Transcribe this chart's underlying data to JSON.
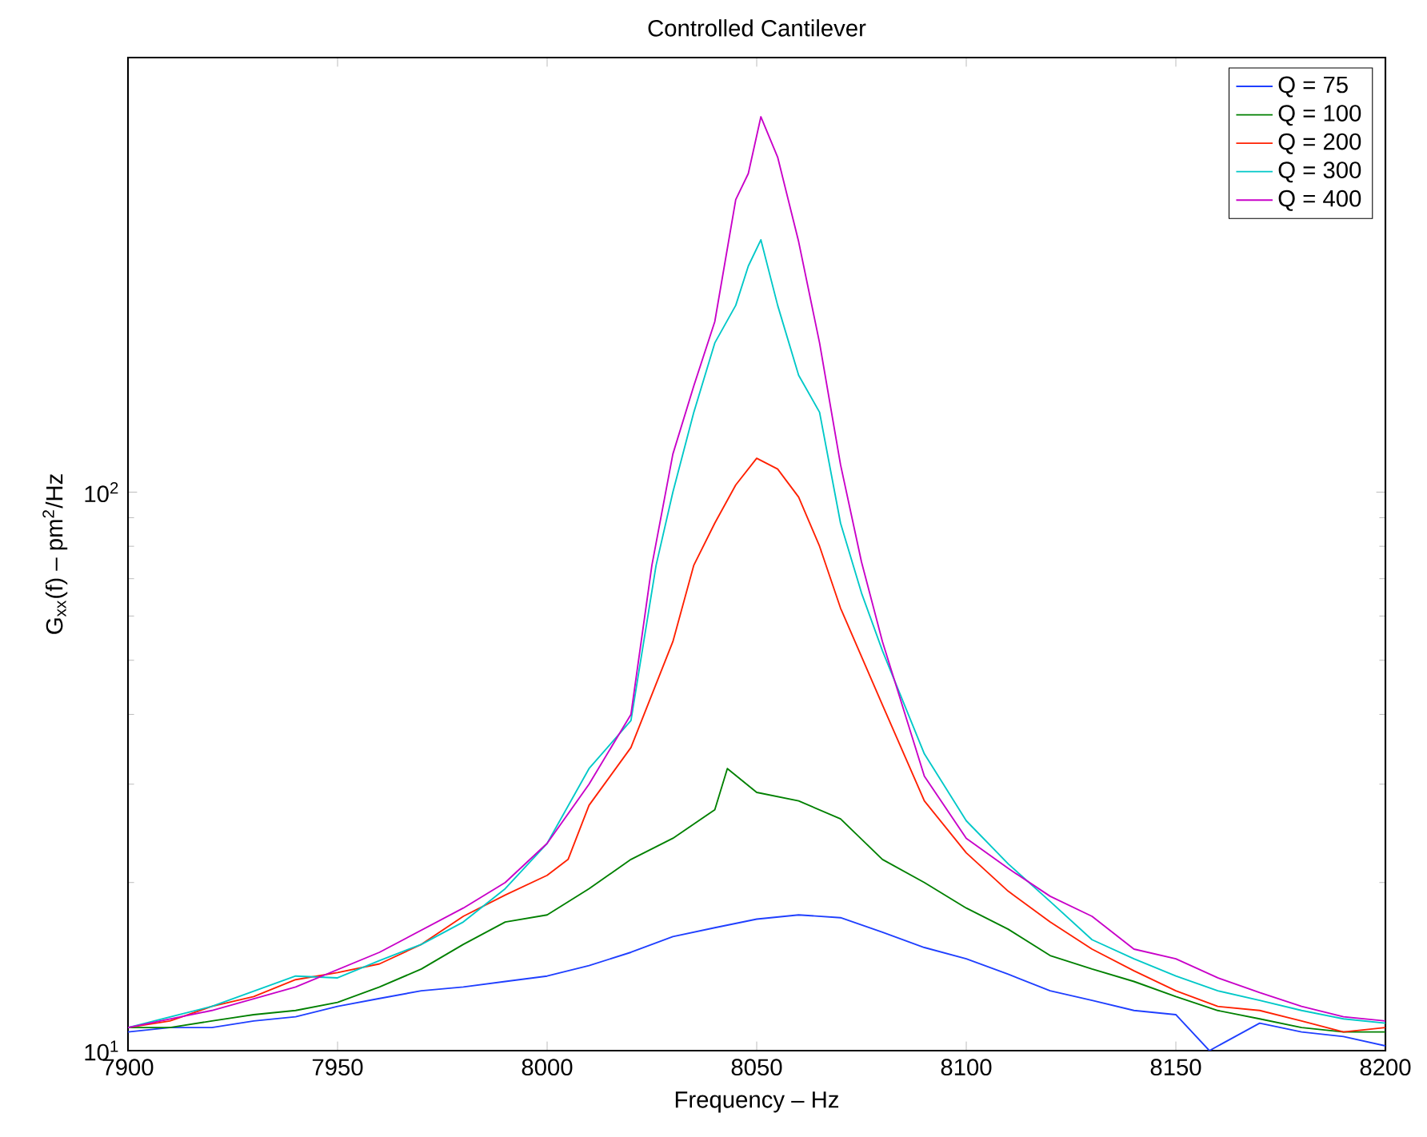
{
  "chart_data": {
    "type": "line",
    "title": "Controlled Cantilever",
    "xlabel": "Frequency – Hz",
    "ylabel": "G$_{xx}$(f) – pm$^{2}$/Hz",
    "log": "y",
    "grid": false,
    "legend": "top right",
    "xlim": [
      7900,
      8200
    ],
    "xticks": [
      7900,
      7950,
      8000,
      8050,
      8100,
      8150,
      8200
    ],
    "ylim": [
      10,
      600
    ],
    "yticks": [
      {
        "value": 10,
        "label": "10$^{1}$"
      },
      {
        "value": 100,
        "label": "10$^{2}$"
      }
    ],
    "series": [
      {
        "name": "Q = 75",
        "color": "#1f3fff",
        "x": [
          7900,
          7910,
          7920,
          7930,
          7940,
          7950,
          7960,
          7970,
          7980,
          7990,
          8000,
          8010,
          8020,
          8030,
          8040,
          8050,
          8060,
          8070,
          8080,
          8090,
          8100,
          8110,
          8120,
          8130,
          8140,
          8150,
          8158,
          8170,
          8180,
          8190,
          8200
        ],
        "values": [
          10.8,
          11,
          11,
          11.3,
          11.5,
          12,
          12.4,
          12.8,
          13,
          13.3,
          13.6,
          14.2,
          15,
          16,
          16.6,
          17.2,
          17.5,
          17.3,
          16.3,
          15.3,
          14.6,
          13.7,
          12.8,
          12.3,
          11.8,
          11.6,
          10,
          11.2,
          10.8,
          10.6,
          10.2
        ]
      },
      {
        "name": "Q = 100",
        "color": "#008000",
        "x": [
          7900,
          7910,
          7920,
          7930,
          7940,
          7950,
          7960,
          7970,
          7980,
          7990,
          8000,
          8010,
          8020,
          8030,
          8040,
          8043,
          8050,
          8060,
          8070,
          8080,
          8090,
          8100,
          8110,
          8120,
          8130,
          8140,
          8150,
          8160,
          8170,
          8180,
          8190,
          8200
        ],
        "values": [
          11,
          11,
          11.3,
          11.6,
          11.8,
          12.2,
          13,
          14,
          15.5,
          17,
          17.5,
          19.5,
          22,
          24,
          27,
          32,
          29,
          28,
          26,
          22,
          20,
          18,
          16.5,
          14.8,
          14,
          13.3,
          12.5,
          11.8,
          11.4,
          11,
          10.8,
          10.8
        ]
      },
      {
        "name": "Q = 200",
        "color": "#ff2000",
        "x": [
          7900,
          7910,
          7920,
          7930,
          7940,
          7950,
          7960,
          7970,
          7980,
          7990,
          8000,
          8005,
          8010,
          8020,
          8030,
          8035,
          8040,
          8045,
          8050,
          8055,
          8060,
          8065,
          8070,
          8080,
          8090,
          8100,
          8110,
          8120,
          8130,
          8140,
          8150,
          8160,
          8170,
          8180,
          8190,
          8200
        ],
        "values": [
          11,
          11.3,
          12,
          12.5,
          13.4,
          13.8,
          14.3,
          15.5,
          17.4,
          19,
          20.6,
          22,
          27.5,
          34.9,
          54,
          74,
          88,
          103,
          115,
          110,
          98,
          80,
          62,
          41.6,
          28,
          22.6,
          19.3,
          17,
          15.2,
          13.9,
          12.8,
          12,
          11.8,
          11.3,
          10.8,
          11
        ]
      },
      {
        "name": "Q = 300",
        "color": "#00c8c8",
        "x": [
          7900,
          7920,
          7940,
          7950,
          7960,
          7970,
          7980,
          7990,
          8000,
          8010,
          8020,
          8026,
          8030,
          8035,
          8040,
          8045,
          8048,
          8051,
          8055,
          8060,
          8065,
          8070,
          8075,
          8080,
          8090,
          8100,
          8110,
          8120,
          8130,
          8140,
          8150,
          8160,
          8170,
          8180,
          8190,
          8200
        ],
        "values": [
          11,
          12,
          13.6,
          13.5,
          14.5,
          15.5,
          17,
          19.5,
          23.5,
          32,
          39,
          74,
          100,
          139,
          185,
          216,
          254,
          283,
          216,
          162,
          139,
          88,
          66,
          52,
          34,
          25.8,
          21.6,
          18.5,
          15.8,
          14.6,
          13.6,
          12.8,
          12.3,
          11.8,
          11.4,
          11.2
        ]
      },
      {
        "name": "Q = 400",
        "color": "#c800c8",
        "x": [
          7900,
          7920,
          7940,
          7960,
          7980,
          7990,
          8000,
          8010,
          8020,
          8025,
          8030,
          8035,
          8040,
          8045,
          8048,
          8051,
          8055,
          8060,
          8065,
          8070,
          8075,
          8080,
          8090,
          8100,
          8110,
          8120,
          8130,
          8140,
          8150,
          8160,
          8170,
          8180,
          8190,
          8200
        ],
        "values": [
          11,
          11.8,
          13,
          15,
          18,
          20,
          23.5,
          30,
          40,
          74,
          117,
          155,
          202,
          334,
          372,
          470,
          398,
          281,
          185,
          112,
          75,
          54,
          31,
          24,
          21.2,
          18.9,
          17.4,
          15.2,
          14.6,
          13.5,
          12.7,
          12,
          11.5,
          11.3
        ]
      }
    ]
  }
}
